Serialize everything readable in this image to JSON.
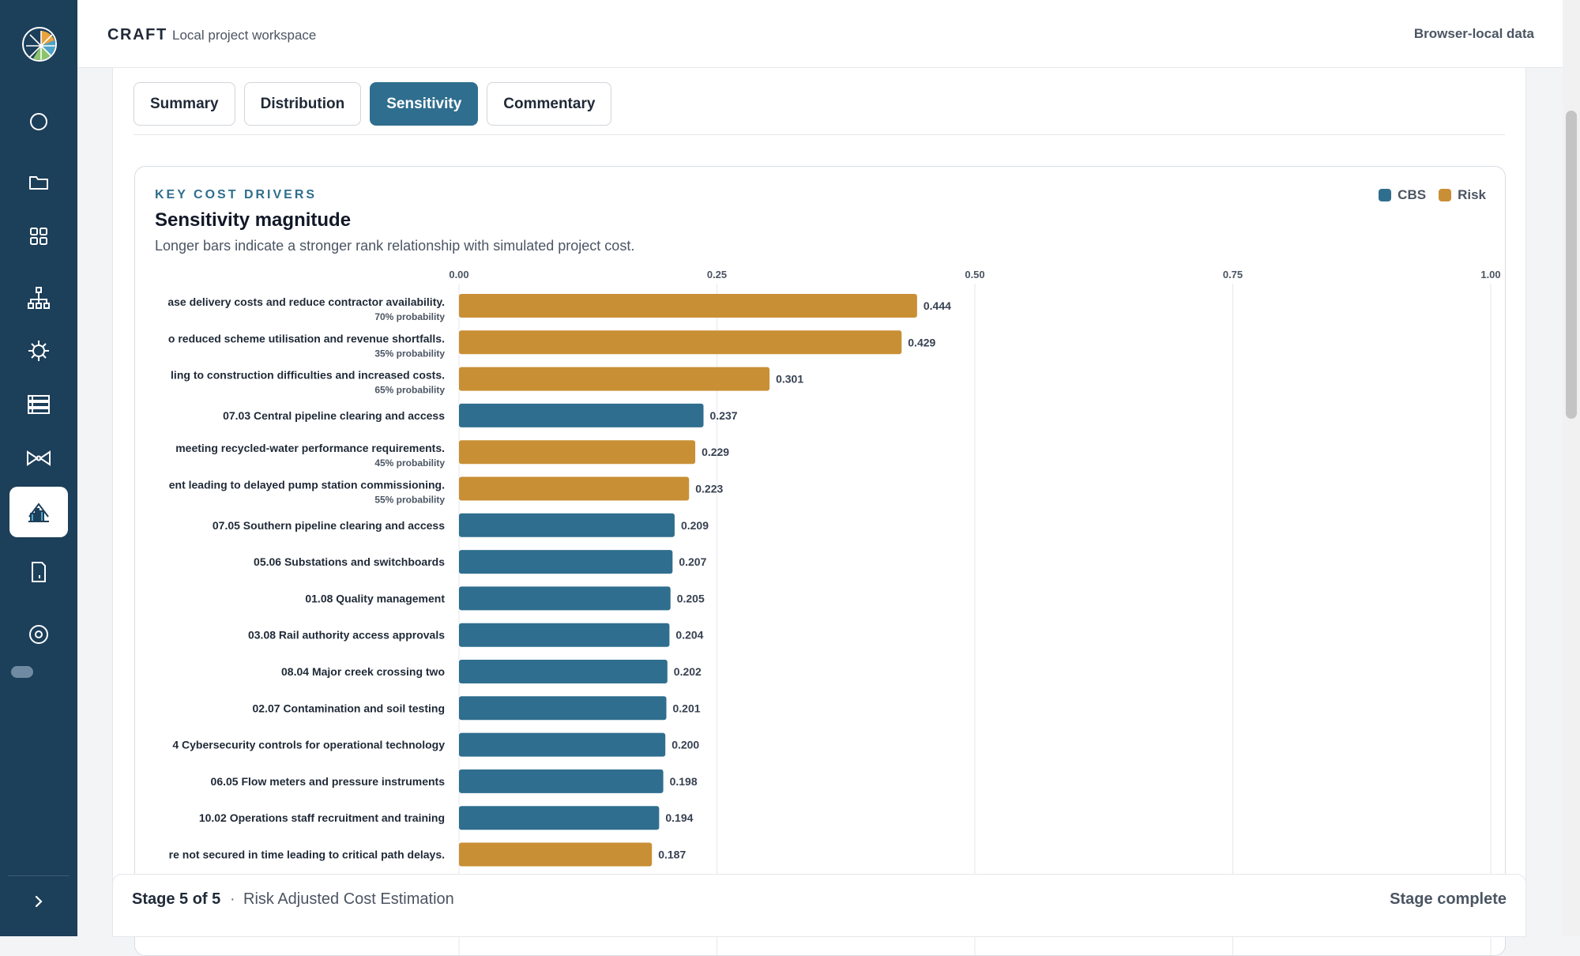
{
  "topbar": {
    "brand": "CRAFT",
    "subtitle": "Local project workspace",
    "storage_label": "Browser-local data"
  },
  "sidebar": {
    "items": [
      {
        "icon": "circle-icon"
      },
      {
        "icon": "folder-icon"
      },
      {
        "icon": "grid-icon"
      },
      {
        "icon": "hierarchy-icon"
      },
      {
        "icon": "risk-virus-icon"
      },
      {
        "icon": "list-icon"
      },
      {
        "icon": "bowtie-icon"
      },
      {
        "icon": "chart-analysis-icon",
        "active": true
      },
      {
        "icon": "document-icon"
      },
      {
        "icon": "settings-gear-icon"
      }
    ]
  },
  "tabs": [
    {
      "label": "Summary",
      "active": false
    },
    {
      "label": "Distribution",
      "active": false
    },
    {
      "label": "Sensitivity",
      "active": true
    },
    {
      "label": "Commentary",
      "active": false
    }
  ],
  "card": {
    "eyebrow": "KEY COST DRIVERS",
    "title": "Sensitivity magnitude",
    "subtitle": "Longer bars indicate a stronger rank relationship with simulated project cost.",
    "legend": [
      {
        "label": "CBS",
        "color": "#2f6e8e"
      },
      {
        "label": "Risk",
        "color": "#c98f35"
      }
    ]
  },
  "chart_data": {
    "type": "bar",
    "orientation": "horizontal",
    "xlim": [
      0,
      1
    ],
    "ticks": [
      "0.00",
      "0.25",
      "0.50",
      "0.75",
      "1.00"
    ],
    "tick_values": [
      0,
      0.25,
      0.5,
      0.75,
      1.0
    ],
    "colors": {
      "CBS": "#2f6e8e",
      "Risk": "#c98f35"
    },
    "bars": [
      {
        "label": "ase delivery costs and reduce contractor availability.",
        "sub": "70% probability",
        "value": 0.444,
        "value_label": "0.444",
        "kind": "Risk"
      },
      {
        "label": "o reduced scheme utilisation and revenue shortfalls.",
        "sub": "35% probability",
        "value": 0.429,
        "value_label": "0.429",
        "kind": "Risk"
      },
      {
        "label": "ling to construction difficulties and increased costs.",
        "sub": "65% probability",
        "value": 0.301,
        "value_label": "0.301",
        "kind": "Risk"
      },
      {
        "label": "07.03 Central pipeline clearing and access",
        "sub": "",
        "value": 0.237,
        "value_label": "0.237",
        "kind": "CBS"
      },
      {
        "label": "meeting recycled-water performance requirements.",
        "sub": "45% probability",
        "value": 0.229,
        "value_label": "0.229",
        "kind": "Risk"
      },
      {
        "label": "ent leading to delayed pump station commissioning.",
        "sub": "55% probability",
        "value": 0.223,
        "value_label": "0.223",
        "kind": "Risk"
      },
      {
        "label": "07.05 Southern pipeline clearing and access",
        "sub": "",
        "value": 0.209,
        "value_label": "0.209",
        "kind": "CBS"
      },
      {
        "label": "05.06 Substations and switchboards",
        "sub": "",
        "value": 0.207,
        "value_label": "0.207",
        "kind": "CBS"
      },
      {
        "label": "01.08 Quality management",
        "sub": "",
        "value": 0.205,
        "value_label": "0.205",
        "kind": "CBS"
      },
      {
        "label": "03.08 Rail authority access approvals",
        "sub": "",
        "value": 0.204,
        "value_label": "0.204",
        "kind": "CBS"
      },
      {
        "label": "08.04 Major creek crossing two",
        "sub": "",
        "value": 0.202,
        "value_label": "0.202",
        "kind": "CBS"
      },
      {
        "label": "02.07 Contamination and soil testing",
        "sub": "",
        "value": 0.201,
        "value_label": "0.201",
        "kind": "CBS"
      },
      {
        "label": "4 Cybersecurity controls for operational technology",
        "sub": "",
        "value": 0.2,
        "value_label": "0.200",
        "kind": "CBS"
      },
      {
        "label": "06.05 Flow meters and pressure instruments",
        "sub": "",
        "value": 0.198,
        "value_label": "0.198",
        "kind": "CBS"
      },
      {
        "label": "10.02 Operations staff recruitment and training",
        "sub": "",
        "value": 0.194,
        "value_label": "0.194",
        "kind": "CBS"
      },
      {
        "label": "re not secured in time leading to critical path delays.",
        "sub": "",
        "value": 0.187,
        "value_label": "0.187",
        "kind": "Risk"
      }
    ]
  },
  "footer": {
    "stage": "Stage 5 of 5",
    "separator": "·",
    "stage_name": "Risk Adjusted Cost Estimation",
    "status": "Stage complete"
  }
}
